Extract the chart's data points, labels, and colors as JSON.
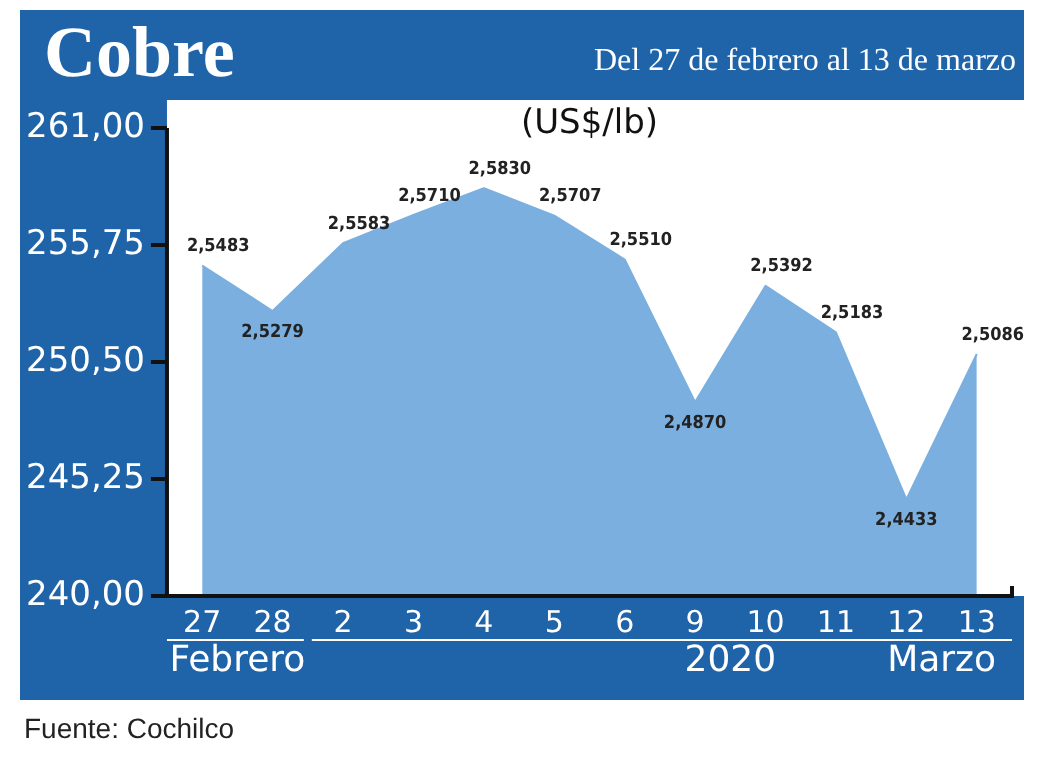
{
  "chart_data": {
    "type": "area",
    "title": "Cobre",
    "subtitle": "Del 27 de febrero al 13 de marzo",
    "ylabel": "(US$/lb)",
    "categories": [
      "27",
      "28",
      "2",
      "3",
      "4",
      "5",
      "6",
      "9",
      "10",
      "11",
      "12",
      "13"
    ],
    "series": [
      {
        "color": "#7aafdf",
        "values": [
          254.83,
          252.79,
          255.83,
          257.1,
          258.3,
          257.07,
          255.1,
          248.7,
          253.92,
          251.83,
          244.33,
          250.86
        ],
        "value_labels": [
          "2,5483",
          "2,5279",
          "2,5583",
          "2,5710",
          "2,5830",
          "2,5707",
          "2,5510",
          "2,4870",
          "2,5392",
          "2,5183",
          "2,4433",
          "2,5086"
        ]
      }
    ],
    "ylim": [
      240,
      261
    ],
    "yticks": [
      {
        "value": 240,
        "label": "240,00"
      },
      {
        "value": 245.25,
        "label": "245,25"
      },
      {
        "value": 250.5,
        "label": "250,50"
      },
      {
        "value": 255.75,
        "label": "255,75"
      },
      {
        "value": 261,
        "label": "261,00"
      }
    ],
    "grid": false,
    "legend": false,
    "marker": "none",
    "annotations": [
      "Febrero",
      "2020",
      "Marzo",
      "Fuente: Cochilco"
    ]
  }
}
